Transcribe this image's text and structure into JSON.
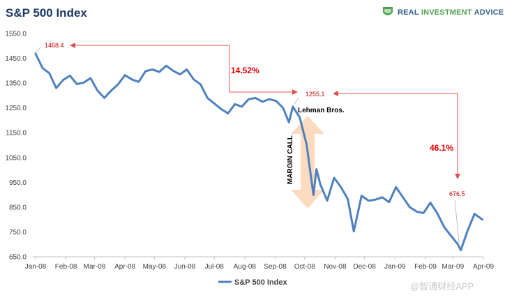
{
  "title": "S&P 500 Index",
  "brand": {
    "main": "REAL ",
    "accent": "INVESTMENT",
    "rest": " ADVICE"
  },
  "watermark": "@智通财经APP",
  "colors": {
    "line": "#4f81bd",
    "annotation": "#e00000",
    "arrow_fill": "#fcd5b5",
    "brand_green": "#4ea24e",
    "title": "#1f3864"
  },
  "chart_data": {
    "type": "line",
    "title": "S&P 500 Index",
    "xlabel": "",
    "ylabel": "",
    "ylim": [
      650,
      1550
    ],
    "yticks": [
      650,
      750,
      850,
      950,
      1050,
      1150,
      1250,
      1350,
      1450,
      1550
    ],
    "ytick_labels": [
      "650.0",
      "750.0",
      "850.0",
      "950.0",
      "1050.0",
      "1150.0",
      "1250.0",
      "1350.0",
      "1450.0",
      "1550.0"
    ],
    "xticks": [
      "2008-01-01",
      "2008-02-01",
      "2008-03-01",
      "2008-04-01",
      "2008-05-01",
      "2008-06-01",
      "2008-07-01",
      "2008-08-01",
      "2008-09-01",
      "2008-10-01",
      "2008-11-01",
      "2008-12-01",
      "2009-01-01",
      "2009-02-01",
      "2009-03-01",
      "2009-04-01"
    ],
    "xtick_labels": [
      "Jan-08",
      "Feb-08",
      "Mar-08",
      "Apr-08",
      "May-08",
      "Jun-08",
      "Jul-08",
      "Aug-08",
      "Sep-08",
      "Oct-08",
      "Nov-08",
      "Dec-08",
      "Jan-09",
      "Feb-09",
      "Mar-09",
      "Apr-09"
    ],
    "grid": false,
    "legend": "bottom-center",
    "series": [
      {
        "name": "S&P 500 Index",
        "x": [
          "2008-01-01",
          "2008-01-08",
          "2008-01-15",
          "2008-01-22",
          "2008-01-29",
          "2008-02-05",
          "2008-02-12",
          "2008-02-19",
          "2008-02-26",
          "2008-03-04",
          "2008-03-11",
          "2008-03-18",
          "2008-03-25",
          "2008-04-01",
          "2008-04-08",
          "2008-04-15",
          "2008-04-22",
          "2008-04-29",
          "2008-05-06",
          "2008-05-13",
          "2008-05-20",
          "2008-05-27",
          "2008-06-03",
          "2008-06-10",
          "2008-06-17",
          "2008-06-24",
          "2008-07-01",
          "2008-07-08",
          "2008-07-15",
          "2008-07-22",
          "2008-07-29",
          "2008-08-05",
          "2008-08-12",
          "2008-08-19",
          "2008-08-26",
          "2008-09-02",
          "2008-09-09",
          "2008-09-15",
          "2008-09-19",
          "2008-09-26",
          "2008-10-03",
          "2008-10-10",
          "2008-10-13",
          "2008-10-17",
          "2008-10-24",
          "2008-10-31",
          "2008-11-07",
          "2008-11-14",
          "2008-11-20",
          "2008-11-28",
          "2008-12-05",
          "2008-12-12",
          "2008-12-19",
          "2008-12-26",
          "2009-01-02",
          "2009-01-09",
          "2009-01-16",
          "2009-01-23",
          "2009-01-30",
          "2009-02-06",
          "2009-02-13",
          "2009-02-20",
          "2009-02-27",
          "2009-03-06",
          "2009-03-09",
          "2009-03-16",
          "2009-03-23",
          "2009-03-31"
        ],
        "values": [
          1468.4,
          1411,
          1390,
          1330,
          1362,
          1380,
          1346,
          1352,
          1370,
          1320,
          1290,
          1320,
          1345,
          1382,
          1365,
          1355,
          1398,
          1405,
          1395,
          1420,
          1400,
          1385,
          1405,
          1365,
          1345,
          1290,
          1268,
          1245,
          1228,
          1265,
          1255,
          1285,
          1290,
          1275,
          1285,
          1278,
          1250,
          1192,
          1255.1,
          1212,
          1102,
          899,
          1003,
          941,
          876,
          968,
          930,
          882,
          752,
          896,
          876,
          880,
          890,
          870,
          931,
          890,
          850,
          832,
          826,
          868,
          826,
          770,
          735,
          700,
          676.5,
          756,
          823,
          800
        ]
      }
    ],
    "annotations": {
      "start_value": "1468.4",
      "mid_value": "1255.1",
      "end_value": "676.5",
      "drop_pct": "14.52%",
      "crash_pct": "46.1%",
      "event_label": "Lehman Bros.",
      "arrow_label": "MARGIN CALL"
    }
  }
}
